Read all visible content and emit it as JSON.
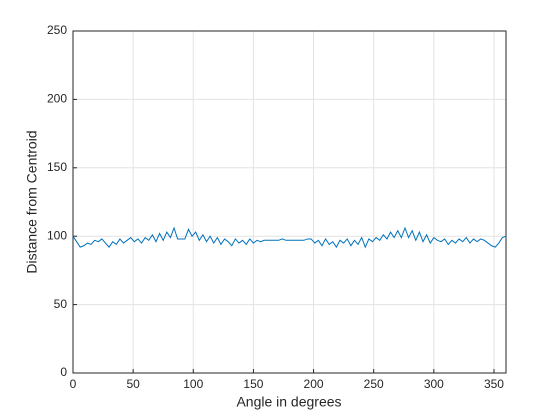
{
  "chart_data": {
    "type": "line",
    "xlabel": "Angle in degrees",
    "ylabel": "Distance from Centroid",
    "x": [
      0,
      3,
      6,
      9,
      12,
      15,
      18,
      21,
      24,
      27,
      30,
      33,
      36,
      39,
      42,
      45,
      48,
      51,
      54,
      57,
      60,
      63,
      66,
      69,
      72,
      75,
      78,
      81,
      84,
      87,
      90,
      93,
      96,
      99,
      102,
      105,
      108,
      111,
      114,
      117,
      120,
      123,
      126,
      129,
      132,
      135,
      138,
      141,
      144,
      147,
      150,
      153,
      156,
      159,
      162,
      165,
      168,
      171,
      174,
      177,
      180,
      183,
      186,
      189,
      192,
      195,
      198,
      201,
      204,
      207,
      210,
      213,
      216,
      219,
      222,
      225,
      228,
      231,
      234,
      237,
      240,
      243,
      246,
      249,
      252,
      255,
      258,
      261,
      264,
      267,
      270,
      273,
      276,
      279,
      282,
      285,
      288,
      291,
      294,
      297,
      300,
      303,
      306,
      309,
      312,
      315,
      318,
      321,
      324,
      327,
      330,
      333,
      336,
      339,
      342,
      345,
      348,
      351,
      354,
      357,
      360
    ],
    "series": [
      {
        "name": "Distance",
        "color": "#0072bd",
        "values": [
          100,
          96,
          92,
          93,
          95,
          94,
          97,
          96,
          98,
          95,
          92,
          96,
          94,
          98,
          95,
          97,
          99,
          96,
          98,
          95,
          99,
          97,
          101,
          96,
          102,
          97,
          103,
          99,
          106,
          98,
          98,
          98,
          105,
          100,
          103,
          97,
          101,
          96,
          100,
          95,
          99,
          94,
          98,
          96,
          93,
          98,
          95,
          97,
          94,
          98,
          95,
          97,
          96,
          97,
          97,
          97,
          97,
          97,
          98,
          97,
          97,
          97,
          97,
          97,
          97,
          98,
          98,
          95,
          97,
          93,
          98,
          94,
          96,
          92,
          97,
          95,
          98,
          93,
          97,
          94,
          99,
          92,
          98,
          96,
          99,
          97,
          101,
          98,
          103,
          99,
          104,
          99,
          106,
          99,
          104,
          97,
          103,
          96,
          101,
          95,
          99,
          97,
          96,
          98,
          94,
          97,
          95,
          98,
          96,
          99,
          95,
          98,
          96,
          98,
          97,
          95,
          93,
          92,
          95,
          99,
          100
        ]
      }
    ],
    "xlim": [
      0,
      360
    ],
    "xticks": [
      0,
      50,
      100,
      150,
      200,
      250,
      300,
      350
    ],
    "ylim": [
      0,
      250
    ],
    "yticks": [
      0,
      50,
      100,
      150,
      200,
      250
    ],
    "grid": true
  }
}
